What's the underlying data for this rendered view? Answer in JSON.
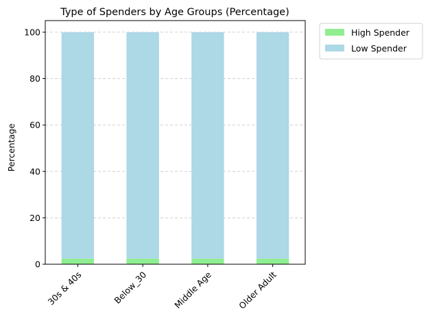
{
  "chart_data": {
    "type": "bar",
    "stacked": true,
    "title": "Type of Spenders by Age Groups (Percentage)",
    "xlabel": "",
    "ylabel": "Percentage",
    "categories": [
      "30s & 40s",
      "Below_30",
      "Middle Age",
      "Older Adult"
    ],
    "series": [
      {
        "name": "High Spender",
        "values": [
          2.4,
          2.4,
          2.4,
          2.4
        ],
        "color": "#90ee90"
      },
      {
        "name": "Low Spender",
        "values": [
          97.6,
          97.6,
          97.6,
          97.6
        ],
        "color": "#add8e6"
      }
    ],
    "ylim": [
      0,
      105
    ],
    "yticks": [
      0,
      20,
      40,
      60,
      80,
      100
    ],
    "grid": {
      "y": true,
      "x": false,
      "style": "dashed"
    },
    "legend_position": "outside-top-right",
    "tick_label_rotation_deg": 45
  }
}
